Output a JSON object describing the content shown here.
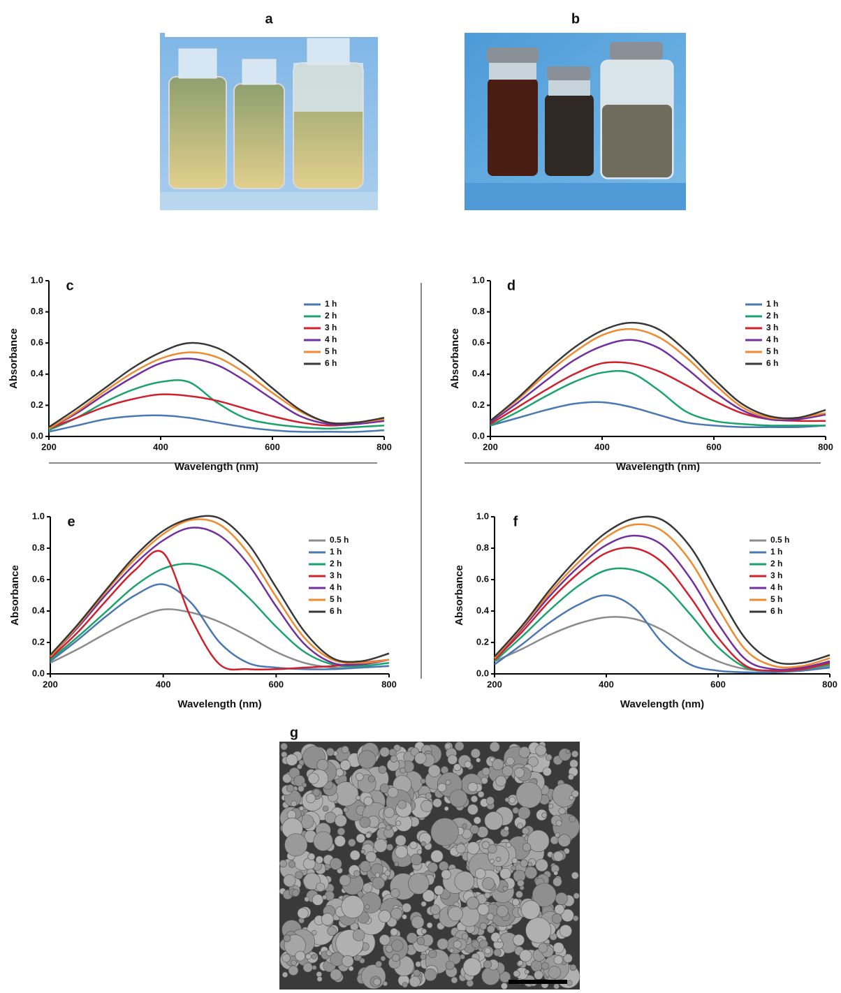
{
  "panels": {
    "a": "a",
    "b": "b",
    "g": "g"
  },
  "chart_data": [
    {
      "type": "line",
      "label": "c",
      "x_label": "Wavelength (nm)",
      "y_label": "Absorbance",
      "x": [
        200,
        250,
        300,
        350,
        400,
        450,
        500,
        550,
        600,
        650,
        700,
        750,
        800
      ],
      "xlim": [
        200,
        800
      ],
      "xticks": [
        200,
        400,
        600,
        800
      ],
      "ylim": [
        0,
        1
      ],
      "yticks": [
        {
          "value": 0,
          "label": "0.0"
        },
        0.2,
        0.4,
        0.6,
        0.8,
        {
          "value": 1,
          "label": "1.0"
        }
      ],
      "legend": "upper right",
      "series": [
        {
          "name": "1 h",
          "color": "#4a78b2",
          "values": [
            0.03,
            0.07,
            0.11,
            0.13,
            0.135,
            0.12,
            0.09,
            0.06,
            0.04,
            0.03,
            0.03,
            0.03,
            0.04
          ]
        },
        {
          "name": "2 h",
          "color": "#1ba36c",
          "values": [
            0.04,
            0.12,
            0.22,
            0.3,
            0.35,
            0.35,
            0.22,
            0.12,
            0.08,
            0.06,
            0.05,
            0.06,
            0.07
          ]
        },
        {
          "name": "3 h",
          "color": "#d0202c",
          "values": [
            0.05,
            0.12,
            0.19,
            0.24,
            0.27,
            0.26,
            0.23,
            0.18,
            0.13,
            0.09,
            0.07,
            0.08,
            0.1
          ]
        },
        {
          "name": "4 h",
          "color": "#7030a0",
          "values": [
            0.05,
            0.15,
            0.27,
            0.38,
            0.47,
            0.5,
            0.46,
            0.36,
            0.24,
            0.13,
            0.08,
            0.08,
            0.1
          ]
        },
        {
          "name": "5 h",
          "color": "#ef8a2f",
          "values": [
            0.05,
            0.16,
            0.29,
            0.41,
            0.5,
            0.54,
            0.51,
            0.41,
            0.28,
            0.16,
            0.09,
            0.09,
            0.11
          ]
        },
        {
          "name": "6 h",
          "color": "#383838",
          "values": [
            0.06,
            0.18,
            0.31,
            0.44,
            0.54,
            0.6,
            0.57,
            0.46,
            0.31,
            0.17,
            0.09,
            0.09,
            0.12
          ]
        }
      ]
    },
    {
      "type": "line",
      "label": "d",
      "x_label": "Wavelength (nm)",
      "y_label": "Absorbance",
      "x": [
        200,
        250,
        300,
        350,
        400,
        450,
        500,
        550,
        600,
        650,
        700,
        750,
        800
      ],
      "xlim": [
        200,
        800
      ],
      "xticks": [
        200,
        400,
        600,
        800
      ],
      "ylim": [
        0,
        1
      ],
      "yticks": [
        {
          "value": 0,
          "label": "0.0"
        },
        0.2,
        0.4,
        0.6,
        0.8,
        {
          "value": 1,
          "label": "1.0"
        }
      ],
      "legend": "upper right",
      "series": [
        {
          "name": "1 h",
          "color": "#4a78b2",
          "values": [
            0.07,
            0.12,
            0.17,
            0.21,
            0.22,
            0.19,
            0.14,
            0.09,
            0.07,
            0.06,
            0.06,
            0.06,
            0.07
          ]
        },
        {
          "name": "2 h",
          "color": "#1ba36c",
          "values": [
            0.07,
            0.16,
            0.26,
            0.35,
            0.41,
            0.41,
            0.3,
            0.16,
            0.1,
            0.08,
            0.07,
            0.07,
            0.07
          ]
        },
        {
          "name": "3 h",
          "color": "#d0202c",
          "values": [
            0.08,
            0.19,
            0.3,
            0.4,
            0.47,
            0.47,
            0.42,
            0.33,
            0.23,
            0.15,
            0.11,
            0.1,
            0.1
          ]
        },
        {
          "name": "4 h",
          "color": "#7030a0",
          "values": [
            0.09,
            0.22,
            0.36,
            0.49,
            0.58,
            0.62,
            0.57,
            0.44,
            0.29,
            0.17,
            0.11,
            0.11,
            0.14
          ]
        },
        {
          "name": "5 h",
          "color": "#ef8a2f",
          "values": [
            0.1,
            0.24,
            0.4,
            0.54,
            0.65,
            0.69,
            0.64,
            0.51,
            0.34,
            0.19,
            0.12,
            0.12,
            0.15
          ]
        },
        {
          "name": "6 h",
          "color": "#383838",
          "values": [
            0.1,
            0.25,
            0.42,
            0.57,
            0.68,
            0.73,
            0.69,
            0.55,
            0.37,
            0.21,
            0.13,
            0.12,
            0.17
          ]
        }
      ]
    },
    {
      "type": "line",
      "label": "e",
      "x_label": "Wavelength (nm)",
      "y_label": "Absorbance",
      "x": [
        200,
        250,
        300,
        350,
        400,
        450,
        500,
        550,
        600,
        650,
        700,
        750,
        800
      ],
      "xlim": [
        200,
        800
      ],
      "xticks": [
        200,
        400,
        600,
        800
      ],
      "ylim": [
        0,
        1
      ],
      "yticks": [
        {
          "value": 0,
          "label": "0.0"
        },
        0.2,
        0.4,
        0.6,
        0.8,
        {
          "value": 1,
          "label": "1.0"
        }
      ],
      "legend": "upper right",
      "series": [
        {
          "name": "0.5 h",
          "color": "#8c8c8c",
          "values": [
            0.07,
            0.16,
            0.26,
            0.35,
            0.41,
            0.39,
            0.33,
            0.24,
            0.14,
            0.07,
            0.04,
            0.04,
            0.05
          ]
        },
        {
          "name": "1 h",
          "color": "#4a78b2",
          "values": [
            0.08,
            0.22,
            0.37,
            0.5,
            0.57,
            0.45,
            0.2,
            0.07,
            0.04,
            0.03,
            0.03,
            0.04,
            0.05
          ]
        },
        {
          "name": "2 h",
          "color": "#1ba36c",
          "values": [
            0.09,
            0.24,
            0.4,
            0.56,
            0.67,
            0.7,
            0.64,
            0.49,
            0.3,
            0.14,
            0.06,
            0.05,
            0.07
          ]
        },
        {
          "name": "3 h",
          "color": "#d0202c",
          "values": [
            0.1,
            0.27,
            0.47,
            0.66,
            0.77,
            0.35,
            0.06,
            0.03,
            0.03,
            0.04,
            0.05,
            0.07,
            0.09
          ]
        },
        {
          "name": "4 h",
          "color": "#7030a0",
          "values": [
            0.11,
            0.3,
            0.51,
            0.7,
            0.85,
            0.93,
            0.88,
            0.7,
            0.43,
            0.19,
            0.07,
            0.06,
            0.09
          ]
        },
        {
          "name": "5 h",
          "color": "#ef8a2f",
          "values": [
            0.11,
            0.31,
            0.53,
            0.73,
            0.89,
            0.98,
            0.95,
            0.77,
            0.49,
            0.23,
            0.09,
            0.07,
            0.09
          ]
        },
        {
          "name": "6 h",
          "color": "#383838",
          "values": [
            0.12,
            0.32,
            0.54,
            0.75,
            0.91,
            0.99,
            0.99,
            0.83,
            0.55,
            0.27,
            0.1,
            0.08,
            0.13
          ]
        }
      ]
    },
    {
      "type": "line",
      "label": "f",
      "x_label": "Wavelength (nm)",
      "y_label": "Absorbance",
      "x": [
        200,
        250,
        300,
        350,
        400,
        450,
        500,
        550,
        600,
        650,
        700,
        750,
        800
      ],
      "xlim": [
        200,
        800
      ],
      "xticks": [
        200,
        400,
        600,
        800
      ],
      "ylim": [
        0,
        1
      ],
      "yticks": [
        {
          "value": 0,
          "label": "0.0"
        },
        0.2,
        0.4,
        0.6,
        0.8,
        {
          "value": 1,
          "label": "1.0"
        }
      ],
      "legend": "upper right",
      "series": [
        {
          "name": "0.5 h",
          "color": "#8c8c8c",
          "values": [
            0.08,
            0.16,
            0.25,
            0.32,
            0.36,
            0.35,
            0.28,
            0.17,
            0.08,
            0.03,
            0.02,
            0.03,
            0.05
          ]
        },
        {
          "name": "1 h",
          "color": "#4a78b2",
          "values": [
            0.06,
            0.19,
            0.33,
            0.44,
            0.5,
            0.42,
            0.2,
            0.06,
            0.02,
            0.01,
            0.01,
            0.02,
            0.04
          ]
        },
        {
          "name": "2 h",
          "color": "#1ba36c",
          "values": [
            0.08,
            0.24,
            0.41,
            0.56,
            0.66,
            0.66,
            0.57,
            0.38,
            0.17,
            0.04,
            0.02,
            0.03,
            0.06
          ]
        },
        {
          "name": "3 h",
          "color": "#d0202c",
          "values": [
            0.09,
            0.27,
            0.47,
            0.64,
            0.77,
            0.8,
            0.71,
            0.49,
            0.23,
            0.05,
            0.02,
            0.03,
            0.07
          ]
        },
        {
          "name": "4 h",
          "color": "#7030a0",
          "values": [
            0.1,
            0.29,
            0.5,
            0.68,
            0.82,
            0.88,
            0.82,
            0.61,
            0.32,
            0.09,
            0.03,
            0.04,
            0.08
          ]
        },
        {
          "name": "5 h",
          "color": "#ef8a2f",
          "values": [
            0.1,
            0.3,
            0.52,
            0.71,
            0.87,
            0.95,
            0.91,
            0.72,
            0.42,
            0.15,
            0.05,
            0.05,
            0.1
          ]
        },
        {
          "name": "6 h",
          "color": "#383838",
          "values": [
            0.11,
            0.31,
            0.54,
            0.74,
            0.9,
            0.99,
            0.98,
            0.81,
            0.51,
            0.22,
            0.08,
            0.07,
            0.12
          ]
        }
      ]
    }
  ]
}
